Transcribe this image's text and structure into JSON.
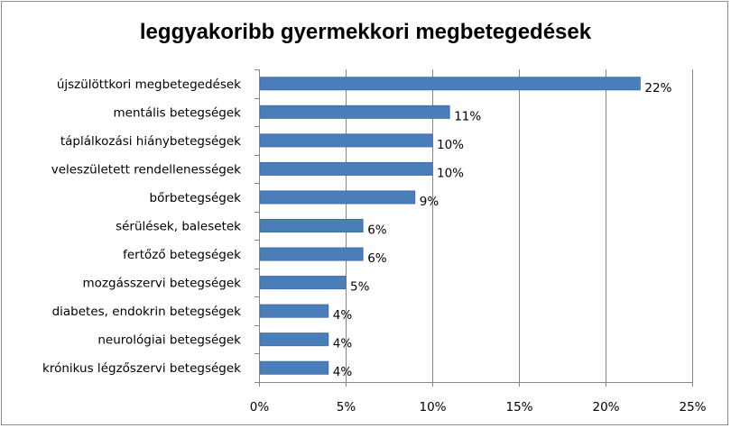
{
  "chart_data": {
    "type": "bar",
    "orientation": "horizontal",
    "title": "leggyakoribb gyermekkori megbetegedések",
    "xlabel": "",
    "ylabel": "",
    "categories": [
      "újszülöttkori megbetegedések",
      "mentális betegségek",
      "táplálkozási hiánybetegségek",
      "veleszületett rendellenességek",
      "bőrbetegségek",
      "sérülések, balesetek",
      "fertőző betegségek",
      "mozgásszervi betegségek",
      "diabetes, endokrin betegségek",
      "neurológiai betegségek",
      "krónikus légzőszervi betegségek"
    ],
    "values": [
      22,
      11,
      10,
      10,
      9,
      6,
      6,
      5,
      4,
      4,
      4
    ],
    "value_labels": [
      "22%",
      "11%",
      "10%",
      "10%",
      "9%",
      "6%",
      "6%",
      "5%",
      "4%",
      "4%",
      "4%"
    ],
    "xlim": [
      0,
      25
    ],
    "ticks": [
      0,
      5,
      10,
      15,
      20,
      25
    ],
    "tick_labels": [
      "0%",
      "5%",
      "10%",
      "15%",
      "20%",
      "25%"
    ],
    "grid": true,
    "legend": "none",
    "bar_color": "#4a7ebb"
  }
}
